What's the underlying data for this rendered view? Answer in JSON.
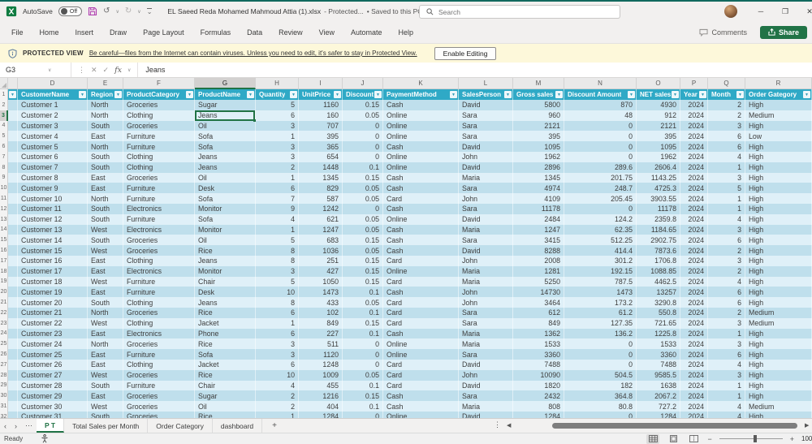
{
  "window": {
    "autosave_label": "AutoSave",
    "autosave_state": "Off",
    "file_name": "EL Saeed Reda Mohamed Mahmoud Attia (1).xlsx",
    "file_status": "-  Protected...",
    "saved_label": "• Saved to this PC",
    "search_placeholder": "Search"
  },
  "ribbon": {
    "tabs": [
      "File",
      "Home",
      "Insert",
      "Draw",
      "Page Layout",
      "Formulas",
      "Data",
      "Review",
      "View",
      "Automate",
      "Help"
    ],
    "comments_label": "Comments",
    "share_label": "Share"
  },
  "protected_view": {
    "label": "PROTECTED VIEW",
    "message": "Be careful—files from the Internet can contain viruses. Unless you need to edit, it's safer to stay in Protected View.",
    "button_label": "Enable Editing"
  },
  "formula_bar": {
    "name_box": "G3",
    "fx_label": "fx",
    "value": "Jeans"
  },
  "grid": {
    "column_letters": [
      "D",
      "E",
      "F",
      "G",
      "H",
      "I",
      "J",
      "K",
      "L",
      "M",
      "N",
      "O",
      "P",
      "Q",
      "R"
    ],
    "selected_letter": "G",
    "selected_cell": {
      "reference": "G3",
      "row": 3,
      "column": "G"
    },
    "headers": [
      "CustomerName",
      "Region",
      "ProductCategory",
      "ProductName",
      "Quantity",
      "UnitPrice",
      "Discount",
      "PaymentMethod",
      "SalesPerson",
      "Gross sales",
      "Discount Amount",
      "NET sales",
      "Year",
      "Month",
      "Order Gategory"
    ],
    "rows": [
      [
        "Customer 1",
        "North",
        "Groceries",
        "Sugar",
        "5",
        "1160",
        "0.15",
        "Cash",
        "David",
        "5800",
        "870",
        "4930",
        "2024",
        "2",
        "High"
      ],
      [
        "Customer 2",
        "North",
        "Clothing",
        "Jeans",
        "6",
        "160",
        "0.05",
        "Online",
        "Sara",
        "960",
        "48",
        "912",
        "2024",
        "2",
        "Medium"
      ],
      [
        "Customer 3",
        "South",
        "Groceries",
        "Oil",
        "3",
        "707",
        "0",
        "Online",
        "Sara",
        "2121",
        "0",
        "2121",
        "2024",
        "3",
        "High"
      ],
      [
        "Customer 4",
        "East",
        "Furniture",
        "Sofa",
        "1",
        "395",
        "0",
        "Online",
        "Sara",
        "395",
        "0",
        "395",
        "2024",
        "6",
        "Low"
      ],
      [
        "Customer 5",
        "North",
        "Furniture",
        "Sofa",
        "3",
        "365",
        "0",
        "Cash",
        "David",
        "1095",
        "0",
        "1095",
        "2024",
        "6",
        "High"
      ],
      [
        "Customer 6",
        "South",
        "Clothing",
        "Jeans",
        "3",
        "654",
        "0",
        "Online",
        "John",
        "1962",
        "0",
        "1962",
        "2024",
        "4",
        "High"
      ],
      [
        "Customer 7",
        "South",
        "Clothing",
        "Jeans",
        "2",
        "1448",
        "0.1",
        "Online",
        "David",
        "2896",
        "289.6",
        "2606.4",
        "2024",
        "1",
        "High"
      ],
      [
        "Customer 8",
        "East",
        "Groceries",
        "Oil",
        "1",
        "1345",
        "0.15",
        "Cash",
        "Maria",
        "1345",
        "201.75",
        "1143.25",
        "2024",
        "3",
        "High"
      ],
      [
        "Customer 9",
        "East",
        "Furniture",
        "Desk",
        "6",
        "829",
        "0.05",
        "Cash",
        "Sara",
        "4974",
        "248.7",
        "4725.3",
        "2024",
        "5",
        "High"
      ],
      [
        "Customer 10",
        "North",
        "Furniture",
        "Sofa",
        "7",
        "587",
        "0.05",
        "Card",
        "John",
        "4109",
        "205.45",
        "3903.55",
        "2024",
        "1",
        "High"
      ],
      [
        "Customer 11",
        "South",
        "Electronics",
        "Monitor",
        "9",
        "1242",
        "0",
        "Cash",
        "Sara",
        "11178",
        "0",
        "11178",
        "2024",
        "1",
        "High"
      ],
      [
        "Customer 12",
        "South",
        "Furniture",
        "Sofa",
        "4",
        "621",
        "0.05",
        "Online",
        "David",
        "2484",
        "124.2",
        "2359.8",
        "2024",
        "4",
        "High"
      ],
      [
        "Customer 13",
        "West",
        "Electronics",
        "Monitor",
        "1",
        "1247",
        "0.05",
        "Cash",
        "Maria",
        "1247",
        "62.35",
        "1184.65",
        "2024",
        "3",
        "High"
      ],
      [
        "Customer 14",
        "South",
        "Groceries",
        "Oil",
        "5",
        "683",
        "0.15",
        "Cash",
        "Sara",
        "3415",
        "512.25",
        "2902.75",
        "2024",
        "6",
        "High"
      ],
      [
        "Customer 15",
        "West",
        "Groceries",
        "Rice",
        "8",
        "1036",
        "0.05",
        "Cash",
        "David",
        "8288",
        "414.4",
        "7873.6",
        "2024",
        "2",
        "High"
      ],
      [
        "Customer 16",
        "East",
        "Clothing",
        "Jeans",
        "8",
        "251",
        "0.15",
        "Card",
        "John",
        "2008",
        "301.2",
        "1706.8",
        "2024",
        "3",
        "High"
      ],
      [
        "Customer 17",
        "East",
        "Electronics",
        "Monitor",
        "3",
        "427",
        "0.15",
        "Online",
        "Maria",
        "1281",
        "192.15",
        "1088.85",
        "2024",
        "2",
        "High"
      ],
      [
        "Customer 18",
        "West",
        "Furniture",
        "Chair",
        "5",
        "1050",
        "0.15",
        "Card",
        "Maria",
        "5250",
        "787.5",
        "4462.5",
        "2024",
        "4",
        "High"
      ],
      [
        "Customer 19",
        "East",
        "Furniture",
        "Desk",
        "10",
        "1473",
        "0.1",
        "Cash",
        "John",
        "14730",
        "1473",
        "13257",
        "2024",
        "6",
        "High"
      ],
      [
        "Customer 20",
        "South",
        "Clothing",
        "Jeans",
        "8",
        "433",
        "0.05",
        "Card",
        "John",
        "3464",
        "173.2",
        "3290.8",
        "2024",
        "6",
        "High"
      ],
      [
        "Customer 21",
        "North",
        "Groceries",
        "Rice",
        "6",
        "102",
        "0.1",
        "Card",
        "Sara",
        "612",
        "61.2",
        "550.8",
        "2024",
        "2",
        "Medium"
      ],
      [
        "Customer 22",
        "West",
        "Clothing",
        "Jacket",
        "1",
        "849",
        "0.15",
        "Card",
        "Sara",
        "849",
        "127.35",
        "721.65",
        "2024",
        "3",
        "Medium"
      ],
      [
        "Customer 23",
        "East",
        "Electronics",
        "Phone",
        "6",
        "227",
        "0.1",
        "Cash",
        "Maria",
        "1362",
        "136.2",
        "1225.8",
        "2024",
        "1",
        "High"
      ],
      [
        "Customer 24",
        "North",
        "Groceries",
        "Rice",
        "3",
        "511",
        "0",
        "Online",
        "Maria",
        "1533",
        "0",
        "1533",
        "2024",
        "3",
        "High"
      ],
      [
        "Customer 25",
        "East",
        "Furniture",
        "Sofa",
        "3",
        "1120",
        "0",
        "Online",
        "Sara",
        "3360",
        "0",
        "3360",
        "2024",
        "6",
        "High"
      ],
      [
        "Customer 26",
        "East",
        "Clothing",
        "Jacket",
        "6",
        "1248",
        "0",
        "Card",
        "David",
        "7488",
        "0",
        "7488",
        "2024",
        "4",
        "High"
      ],
      [
        "Customer 27",
        "West",
        "Groceries",
        "Rice",
        "10",
        "1009",
        "0.05",
        "Card",
        "John",
        "10090",
        "504.5",
        "9585.5",
        "2024",
        "3",
        "High"
      ],
      [
        "Customer 28",
        "South",
        "Furniture",
        "Chair",
        "4",
        "455",
        "0.1",
        "Card",
        "David",
        "1820",
        "182",
        "1638",
        "2024",
        "1",
        "High"
      ],
      [
        "Customer 29",
        "East",
        "Groceries",
        "Sugar",
        "2",
        "1216",
        "0.15",
        "Cash",
        "Sara",
        "2432",
        "364.8",
        "2067.2",
        "2024",
        "1",
        "High"
      ],
      [
        "Customer 30",
        "West",
        "Groceries",
        "Oil",
        "2",
        "404",
        "0.1",
        "Cash",
        "Maria",
        "808",
        "80.8",
        "727.2",
        "2024",
        "4",
        "Medium"
      ],
      [
        "Customer 31",
        "South",
        "Groceries",
        "Rice",
        "1",
        "1284",
        "0",
        "Online",
        "David",
        "1284",
        "0",
        "1284",
        "2024",
        "4",
        "High"
      ]
    ]
  },
  "sheet_bar": {
    "tabs": [
      {
        "label": "P T",
        "active": true
      },
      {
        "label": "Total Sales per Month",
        "active": false
      },
      {
        "label": "Order Category",
        "active": false
      },
      {
        "label": "dashboard",
        "active": false
      }
    ],
    "add_label": "+"
  },
  "status_bar": {
    "mode": "Ready",
    "zoom_level": "100%"
  },
  "icons": {
    "chevron_down": "∨",
    "caret_small": "⌄",
    "undo": "↺",
    "redo": "↻",
    "ellipsis_v": "⋮",
    "ellipsis_h": "⋯",
    "cancel": "✕",
    "check": "✓",
    "filter": "▼",
    "nav_left": "‹",
    "nav_right": "›",
    "scroll_left": "◀",
    "scroll_right": "▶",
    "minimize": "─",
    "restore": "❐",
    "close": "✕",
    "minus": "−",
    "plus": "+"
  },
  "colors": {
    "table_header_teal": "#2fa9c6",
    "band_dark": "#bfdfec",
    "band_light": "#dff0f8",
    "selection_green": "#217346",
    "share_green": "#217346",
    "banner_yellow": "#fdf8da"
  }
}
